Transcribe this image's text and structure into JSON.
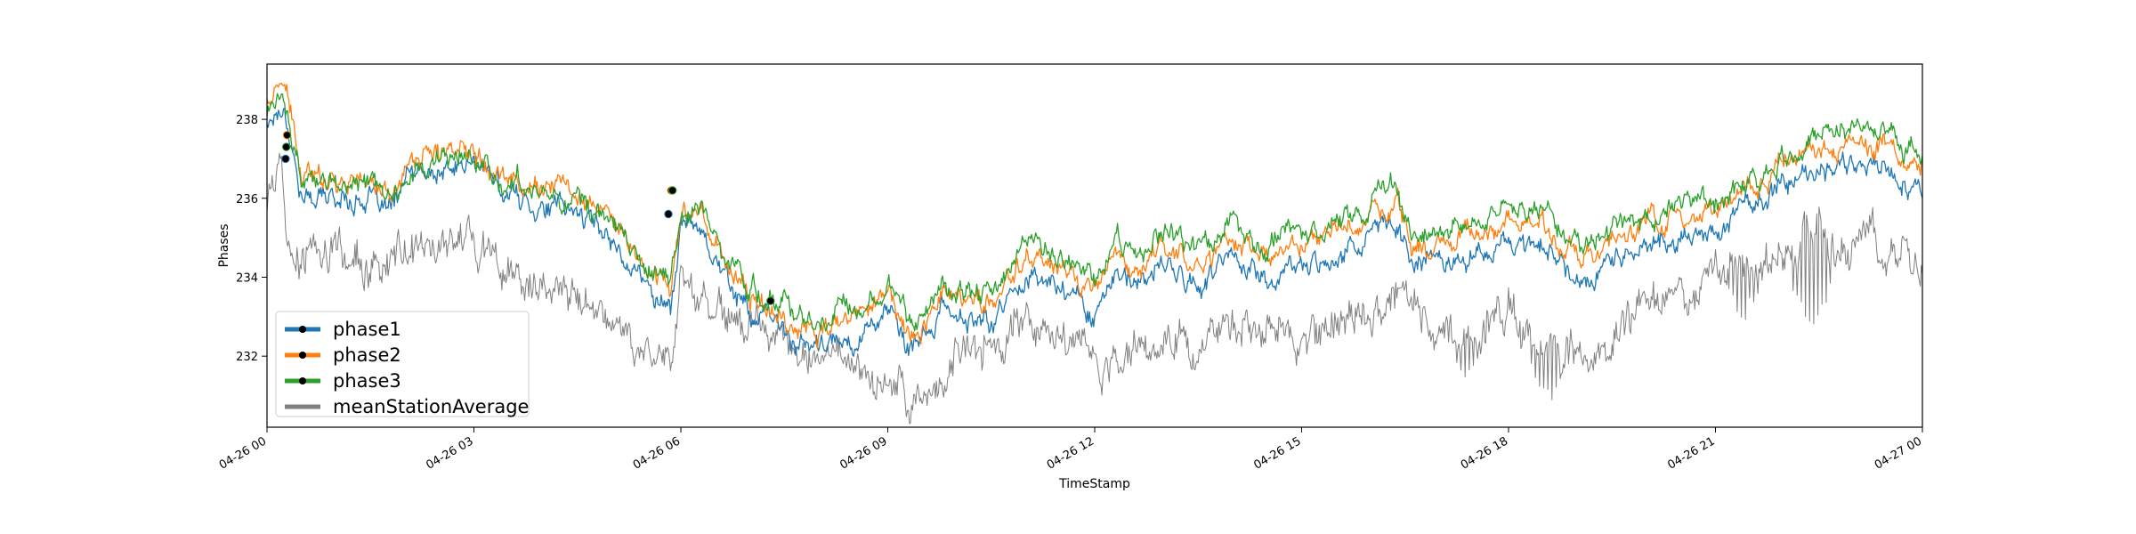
{
  "chart_data": {
    "type": "line",
    "title": "",
    "xlabel": "TimeStamp",
    "ylabel": "Phases",
    "x_ticks": [
      "04-26 00",
      "04-26 03",
      "04-26 06",
      "04-26 09",
      "04-26 12",
      "04-26 15",
      "04-26 18",
      "04-26 21",
      "04-27 00"
    ],
    "xlim": [
      "04-26 00",
      "04-27 00"
    ],
    "y_ticks": [
      232,
      234,
      236,
      238
    ],
    "ylim": [
      230.2,
      239.4
    ],
    "grid": false,
    "legend_position": "lower-left",
    "series": [
      {
        "name": "phase1",
        "color": "#1f77b4",
        "marker_color": "#000000",
        "x_hours": [
          0,
          0.25,
          0.5,
          1,
          1.5,
          1.8,
          2,
          2.5,
          3,
          3.5,
          4,
          4.5,
          5,
          5.5,
          5.85,
          6,
          6.3,
          6.6,
          7,
          7.4,
          7.7,
          8,
          8.5,
          9,
          9.3,
          9.5,
          9.8,
          10,
          10.5,
          11,
          11.5,
          12,
          12.3,
          12.6,
          13,
          13.5,
          14,
          14.5,
          15,
          15.5,
          16,
          16.4,
          16.6,
          17,
          17.5,
          18,
          18.5,
          19,
          19.5,
          20,
          20.5,
          21,
          21.5,
          22,
          22.5,
          23,
          23.5,
          24
        ],
        "values": [
          237.9,
          238.4,
          236.0,
          236.0,
          236.0,
          235.6,
          236.5,
          236.6,
          236.9,
          236.1,
          235.8,
          235.7,
          235.0,
          233.8,
          233.2,
          235.3,
          235.3,
          234.2,
          233.1,
          232.8,
          232.3,
          232.2,
          232.4,
          233.2,
          232.0,
          232.4,
          233.2,
          233.0,
          232.8,
          234.1,
          233.8,
          233.1,
          234.2,
          233.6,
          234.4,
          233.7,
          234.6,
          233.9,
          234.3,
          234.6,
          235.0,
          235.4,
          234.4,
          234.5,
          234.6,
          234.8,
          234.9,
          233.9,
          234.4,
          234.8,
          235.0,
          235.2,
          235.8,
          236.4,
          236.6,
          237.0,
          236.8,
          236.3
        ],
        "markers": [
          [
            0.27,
            237.0
          ],
          [
            5.82,
            235.6
          ]
        ]
      },
      {
        "name": "phase2",
        "color": "#ff7f0e",
        "marker_color": "#000000",
        "x_hours": [
          0,
          0.25,
          0.5,
          1,
          1.5,
          1.8,
          2,
          2.5,
          3,
          3.5,
          4,
          4.5,
          5,
          5.5,
          5.85,
          6,
          6.3,
          6.6,
          7,
          7.4,
          7.7,
          8,
          8.5,
          9,
          9.3,
          9.5,
          9.8,
          10,
          10.5,
          11,
          11.5,
          12,
          12.3,
          12.6,
          13,
          13.5,
          14,
          14.5,
          15,
          15.5,
          16,
          16.4,
          16.6,
          17,
          17.5,
          18,
          18.5,
          19,
          19.5,
          20,
          20.5,
          21,
          21.5,
          22,
          22.5,
          23,
          23.5,
          24
        ],
        "values": [
          238.5,
          238.9,
          236.5,
          236.6,
          236.4,
          236.0,
          236.9,
          237.1,
          237.4,
          236.5,
          236.3,
          236.2,
          235.4,
          234.2,
          233.8,
          235.6,
          235.7,
          234.5,
          233.5,
          233.1,
          232.7,
          232.6,
          232.9,
          233.6,
          232.5,
          232.8,
          233.7,
          233.4,
          233.3,
          234.6,
          234.2,
          233.6,
          234.6,
          234.1,
          234.9,
          234.2,
          235.1,
          234.4,
          234.8,
          235.0,
          235.5,
          235.9,
          234.8,
          235.0,
          235.1,
          235.4,
          235.3,
          234.4,
          234.9,
          235.3,
          235.5,
          235.6,
          236.2,
          236.9,
          237.2,
          237.6,
          237.3,
          236.8
        ],
        "markers": [
          [
            0.29,
            237.6
          ],
          [
            5.86,
            236.2
          ]
        ]
      },
      {
        "name": "phase3",
        "color": "#2ca02c",
        "marker_color": "#000000",
        "x_hours": [
          0,
          0.25,
          0.5,
          1,
          1.5,
          1.8,
          2,
          2.5,
          3,
          3.5,
          4,
          4.5,
          5,
          5.5,
          5.85,
          6,
          6.3,
          6.6,
          7,
          7.4,
          7.7,
          8,
          8.5,
          9,
          9.3,
          9.5,
          9.8,
          10,
          10.5,
          11,
          11.5,
          12,
          12.3,
          12.6,
          13,
          13.5,
          14,
          14.5,
          15,
          15.5,
          16,
          16.4,
          16.6,
          17,
          17.5,
          18,
          18.5,
          19,
          19.5,
          20,
          20.5,
          21,
          21.5,
          22,
          22.5,
          23,
          23.5,
          24
        ],
        "values": [
          238.2,
          238.7,
          236.3,
          236.4,
          236.3,
          235.8,
          236.7,
          236.9,
          237.1,
          236.4,
          236.2,
          236.0,
          235.3,
          234.2,
          233.9,
          235.6,
          235.8,
          234.6,
          233.7,
          233.4,
          233.0,
          233.0,
          233.3,
          234.0,
          232.8,
          233.1,
          234.0,
          233.7,
          233.5,
          234.9,
          234.6,
          233.9,
          235.0,
          234.4,
          235.3,
          234.6,
          235.5,
          234.8,
          235.2,
          235.4,
          235.9,
          236.4,
          235.0,
          235.2,
          235.4,
          235.7,
          235.7,
          234.7,
          235.2,
          235.6,
          235.8,
          235.9,
          236.4,
          237.0,
          237.5,
          237.9,
          237.6,
          237.0
        ],
        "markers": [
          [
            0.28,
            237.3
          ],
          [
            5.88,
            236.2
          ],
          [
            7.3,
            233.4
          ]
        ]
      },
      {
        "name": "meanStationAverage",
        "color": "#808080",
        "marker_color": "",
        "x_hours": [
          0,
          0.2,
          0.3,
          0.5,
          1,
          1.5,
          2,
          2.5,
          3,
          3.5,
          4,
          4.5,
          5,
          5.5,
          5.85,
          6,
          6.5,
          7,
          7.5,
          8,
          8.5,
          9,
          9.5,
          9.8,
          10,
          10.5,
          11,
          11.5,
          12,
          12.5,
          13,
          13.5,
          14,
          14.5,
          15,
          15.5,
          16,
          16.5,
          17,
          17.5,
          18,
          18.5,
          19,
          19.5,
          20,
          20.5,
          21,
          21.5,
          22,
          22.5,
          23,
          23.5,
          24
        ],
        "values": [
          235.8,
          236.8,
          234.5,
          234.5,
          234.7,
          234.2,
          234.6,
          234.8,
          235.0,
          234.0,
          233.7,
          233.4,
          232.8,
          232.3,
          231.8,
          233.8,
          233.2,
          232.6,
          232.3,
          231.8,
          231.7,
          231.2,
          231.0,
          231.2,
          232.2,
          232.4,
          232.8,
          232.6,
          232.0,
          231.8,
          232.4,
          232.2,
          232.6,
          232.8,
          232.6,
          232.8,
          233.0,
          233.6,
          232.4,
          232.6,
          233.2,
          232.0,
          232.2,
          232.8,
          233.4,
          233.6,
          234.2,
          234.0,
          234.6,
          235.0,
          234.8,
          234.9,
          234.5
        ],
        "dips": [
          [
            9.6,
            230.6
          ],
          [
            17.4,
            231.3
          ],
          [
            18.6,
            230.7
          ],
          [
            19.2,
            231.5
          ],
          [
            21.4,
            232.8
          ],
          [
            22.4,
            232.6
          ]
        ]
      }
    ]
  }
}
